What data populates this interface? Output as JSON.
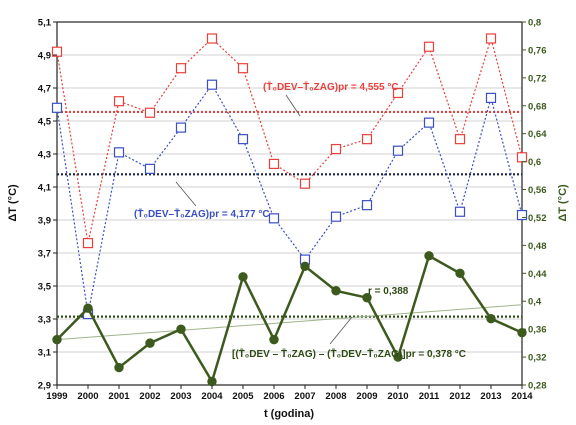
{
  "chart_data": {
    "type": "line",
    "xlabel": "t (godina)",
    "ylabel_left": "ΔT (°C)",
    "ylabel_right": "ΔT (°C)",
    "x": [
      1999,
      2000,
      2001,
      2002,
      2003,
      2004,
      2005,
      2006,
      2007,
      2008,
      2009,
      2010,
      2011,
      2012,
      2013,
      2014
    ],
    "x_ticks": [
      "1999",
      "2000",
      "2001",
      "2002",
      "2003",
      "2004",
      "2005",
      "2006",
      "2007",
      "2008",
      "2009",
      "2010",
      "2011",
      "2012",
      "2013",
      "2014"
    ],
    "ylim_left": [
      2.9,
      5.1
    ],
    "yticks_left": [
      "2,9",
      "3,1",
      "3,3",
      "3,5",
      "3,7",
      "3,9",
      "4,1",
      "4,3",
      "4,5",
      "4,7",
      "4,9",
      "5,1"
    ],
    "ylim_right": [
      0.28,
      0.8
    ],
    "yticks_right": [
      "0,28",
      "0,32",
      "0,36",
      "0,4",
      "0,44",
      "0,48",
      "0,52",
      "0,56",
      "0,6",
      "0,64",
      "0,68",
      "0,72",
      "0,76",
      "0,8"
    ],
    "grid": "horizontal",
    "series": [
      {
        "axis": "left",
        "color": "#e8413c",
        "marker": "open-square",
        "line": "dotted",
        "values": [
          4.92,
          3.76,
          4.62,
          4.55,
          4.82,
          5.0,
          4.82,
          4.24,
          4.12,
          4.33,
          4.39,
          4.67,
          4.95,
          4.39,
          5.0,
          4.28
        ],
        "mean": 4.555,
        "mean_color": "#e8413c"
      },
      {
        "axis": "left",
        "color": "#3a4fc4",
        "marker": "open-square",
        "line": "dotted",
        "values": [
          4.58,
          3.33,
          4.31,
          4.21,
          4.46,
          4.72,
          4.39,
          3.91,
          3.66,
          3.92,
          3.99,
          4.32,
          4.49,
          3.95,
          4.64,
          3.93
        ],
        "mean": 4.177,
        "mean_color": "#1a2340"
      },
      {
        "axis": "right",
        "color": "#3d5a1e",
        "marker": "filled-circle",
        "line": "solid",
        "values": [
          0.345,
          0.39,
          0.305,
          0.34,
          0.36,
          0.285,
          0.435,
          0.345,
          0.45,
          0.415,
          0.405,
          0.32,
          0.465,
          0.44,
          0.375,
          0.355
        ],
        "mean": 0.378,
        "mean_color": "#2e4a14",
        "trend": [
          0.345,
          0.395
        ]
      }
    ],
    "annotations": {
      "red_mean": "(T̄₀DEV–T̄₀ZAG)pr = 4,555 °C",
      "blue_mean": "(T̄₀DEV–T̄₀ZAG)pr = 4,177 °C",
      "green_mean": "[(T̄₀DEV – T̄₀ZAG) – (T̄₀DEV–T̄₀ZAG)]pr = 0,378 °C",
      "r_value": "r = 0,388"
    }
  }
}
